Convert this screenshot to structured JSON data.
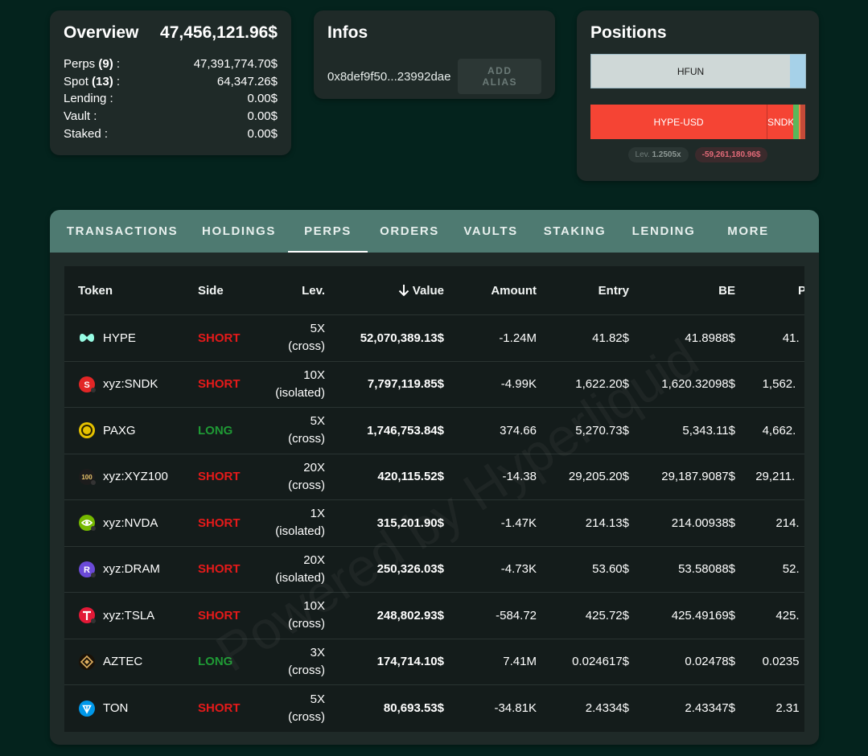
{
  "overview": {
    "title": "Overview",
    "total": "47,456,121.96$",
    "rows": [
      {
        "label": "Perps",
        "count": "(9)",
        "suffix": " :",
        "value": "47,391,774.70$"
      },
      {
        "label": "Spot",
        "count": "(13)",
        "suffix": " :",
        "value": "64,347.26$"
      },
      {
        "label": "Lending",
        "count": "",
        "suffix": " :",
        "value": "0.00$"
      },
      {
        "label": "Vault",
        "count": "",
        "suffix": " :",
        "value": "0.00$"
      },
      {
        "label": "Staked",
        "count": "",
        "suffix": " :",
        "value": "0.00$"
      }
    ]
  },
  "infos": {
    "title": "Infos",
    "address": "0x8def9f50...23992dae",
    "alias_button": "ADD ALIAS"
  },
  "positions": {
    "title": "Positions",
    "long_bar": {
      "label": "HFUN"
    },
    "short_bar": {
      "label1": "HYPE-USD",
      "label2": "SNDK"
    },
    "lev_label": "Lev.",
    "lev_value": "1.2505x",
    "pnl": "-59,261,180.96$",
    "colors": {
      "long_main": "#cfd8d7",
      "short_main": "#f54434"
    }
  },
  "tabs": [
    {
      "label": "TRANSACTIONS",
      "active": false
    },
    {
      "label": "HOLDINGS",
      "active": false
    },
    {
      "label": "PERPS",
      "active": true
    },
    {
      "label": "ORDERS",
      "active": false
    },
    {
      "label": "VAULTS",
      "active": false
    },
    {
      "label": "STAKING",
      "active": false
    },
    {
      "label": "LENDING",
      "active": false
    },
    {
      "label": "MORE",
      "active": false
    }
  ],
  "table": {
    "headers": {
      "token": "Token",
      "side": "Side",
      "lev": "Lev.",
      "value": "Value",
      "amount": "Amount",
      "entry": "Entry",
      "be": "BE",
      "p": "P"
    },
    "rows": [
      {
        "token": "HYPE",
        "icon": "hype-icon",
        "side": "SHORT",
        "lev": "5X",
        "mode": "(cross)",
        "value": "52,070,389.13$",
        "amount": "-1.24M",
        "entry": "41.82$",
        "be": "41.8988$",
        "p": "41."
      },
      {
        "token": "xyz:SNDK",
        "icon": "sndk-icon",
        "side": "SHORT",
        "lev": "10X",
        "mode": "(isolated)",
        "value": "7,797,119.85$",
        "amount": "-4.99K",
        "entry": "1,622.20$",
        "be": "1,620.32098$",
        "p": "1,562."
      },
      {
        "token": "PAXG",
        "icon": "paxg-icon",
        "side": "LONG",
        "lev": "5X",
        "mode": "(cross)",
        "value": "1,746,753.84$",
        "amount": "374.66",
        "entry": "5,270.73$",
        "be": "5,343.11$",
        "p": "4,662."
      },
      {
        "token": "xyz:XYZ100",
        "icon": "xyz100-icon",
        "side": "SHORT",
        "lev": "20X",
        "mode": "(cross)",
        "value": "420,115.52$",
        "amount": "-14.38",
        "entry": "29,205.20$",
        "be": "29,187.9087$",
        "p": "29,211."
      },
      {
        "token": "xyz:NVDA",
        "icon": "nvda-icon",
        "side": "SHORT",
        "lev": "1X",
        "mode": "(isolated)",
        "value": "315,201.90$",
        "amount": "-1.47K",
        "entry": "214.13$",
        "be": "214.00938$",
        "p": "214."
      },
      {
        "token": "xyz:DRAM",
        "icon": "dram-icon",
        "side": "SHORT",
        "lev": "20X",
        "mode": "(isolated)",
        "value": "250,326.03$",
        "amount": "-4.73K",
        "entry": "53.60$",
        "be": "53.58088$",
        "p": "52."
      },
      {
        "token": "xyz:TSLA",
        "icon": "tsla-icon",
        "side": "SHORT",
        "lev": "10X",
        "mode": "(cross)",
        "value": "248,802.93$",
        "amount": "-584.72",
        "entry": "425.72$",
        "be": "425.49169$",
        "p": "425."
      },
      {
        "token": "AZTEC",
        "icon": "aztec-icon",
        "side": "LONG",
        "lev": "3X",
        "mode": "(cross)",
        "value": "174,714.10$",
        "amount": "7.41M",
        "entry": "0.024617$",
        "be": "0.02478$",
        "p": "0.0235"
      },
      {
        "token": "TON",
        "icon": "ton-icon",
        "side": "SHORT",
        "lev": "5X",
        "mode": "(cross)",
        "value": "80,693.53$",
        "amount": "-34.81K",
        "entry": "2.4334$",
        "be": "2.43347$",
        "p": "2.31"
      }
    ]
  },
  "watermark": "Powered by Hyperliquid"
}
